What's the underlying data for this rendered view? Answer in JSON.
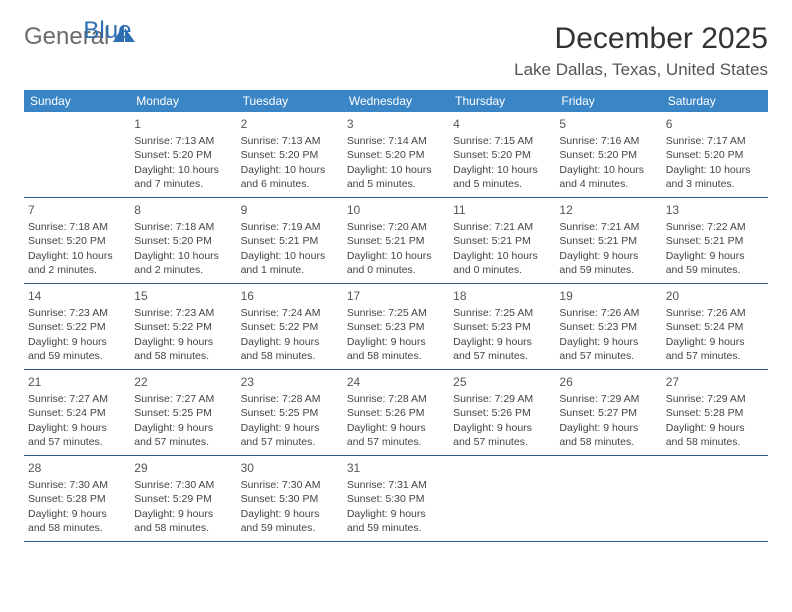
{
  "brand": {
    "part1": "General",
    "part2": "Blue"
  },
  "title": "December 2025",
  "location": "Lake Dallas, Texas, United States",
  "colors": {
    "header_bg": "#3a85c6",
    "header_text": "#ffffff",
    "border": "#2d5a8a",
    "logo_gray": "#6b6b6b",
    "logo_blue": "#2d6fb3",
    "text": "#444444"
  },
  "weekdays": [
    "Sunday",
    "Monday",
    "Tuesday",
    "Wednesday",
    "Thursday",
    "Friday",
    "Saturday"
  ],
  "weeks": [
    [
      null,
      {
        "n": "1",
        "sunrise": "7:13 AM",
        "sunset": "5:20 PM",
        "daylight": "10 hours and 7 minutes."
      },
      {
        "n": "2",
        "sunrise": "7:13 AM",
        "sunset": "5:20 PM",
        "daylight": "10 hours and 6 minutes."
      },
      {
        "n": "3",
        "sunrise": "7:14 AM",
        "sunset": "5:20 PM",
        "daylight": "10 hours and 5 minutes."
      },
      {
        "n": "4",
        "sunrise": "7:15 AM",
        "sunset": "5:20 PM",
        "daylight": "10 hours and 5 minutes."
      },
      {
        "n": "5",
        "sunrise": "7:16 AM",
        "sunset": "5:20 PM",
        "daylight": "10 hours and 4 minutes."
      },
      {
        "n": "6",
        "sunrise": "7:17 AM",
        "sunset": "5:20 PM",
        "daylight": "10 hours and 3 minutes."
      }
    ],
    [
      {
        "n": "7",
        "sunrise": "7:18 AM",
        "sunset": "5:20 PM",
        "daylight": "10 hours and 2 minutes."
      },
      {
        "n": "8",
        "sunrise": "7:18 AM",
        "sunset": "5:20 PM",
        "daylight": "10 hours and 2 minutes."
      },
      {
        "n": "9",
        "sunrise": "7:19 AM",
        "sunset": "5:21 PM",
        "daylight": "10 hours and 1 minute."
      },
      {
        "n": "10",
        "sunrise": "7:20 AM",
        "sunset": "5:21 PM",
        "daylight": "10 hours and 0 minutes."
      },
      {
        "n": "11",
        "sunrise": "7:21 AM",
        "sunset": "5:21 PM",
        "daylight": "10 hours and 0 minutes."
      },
      {
        "n": "12",
        "sunrise": "7:21 AM",
        "sunset": "5:21 PM",
        "daylight": "9 hours and 59 minutes."
      },
      {
        "n": "13",
        "sunrise": "7:22 AM",
        "sunset": "5:21 PM",
        "daylight": "9 hours and 59 minutes."
      }
    ],
    [
      {
        "n": "14",
        "sunrise": "7:23 AM",
        "sunset": "5:22 PM",
        "daylight": "9 hours and 59 minutes."
      },
      {
        "n": "15",
        "sunrise": "7:23 AM",
        "sunset": "5:22 PM",
        "daylight": "9 hours and 58 minutes."
      },
      {
        "n": "16",
        "sunrise": "7:24 AM",
        "sunset": "5:22 PM",
        "daylight": "9 hours and 58 minutes."
      },
      {
        "n": "17",
        "sunrise": "7:25 AM",
        "sunset": "5:23 PM",
        "daylight": "9 hours and 58 minutes."
      },
      {
        "n": "18",
        "sunrise": "7:25 AM",
        "sunset": "5:23 PM",
        "daylight": "9 hours and 57 minutes."
      },
      {
        "n": "19",
        "sunrise": "7:26 AM",
        "sunset": "5:23 PM",
        "daylight": "9 hours and 57 minutes."
      },
      {
        "n": "20",
        "sunrise": "7:26 AM",
        "sunset": "5:24 PM",
        "daylight": "9 hours and 57 minutes."
      }
    ],
    [
      {
        "n": "21",
        "sunrise": "7:27 AM",
        "sunset": "5:24 PM",
        "daylight": "9 hours and 57 minutes."
      },
      {
        "n": "22",
        "sunrise": "7:27 AM",
        "sunset": "5:25 PM",
        "daylight": "9 hours and 57 minutes."
      },
      {
        "n": "23",
        "sunrise": "7:28 AM",
        "sunset": "5:25 PM",
        "daylight": "9 hours and 57 minutes."
      },
      {
        "n": "24",
        "sunrise": "7:28 AM",
        "sunset": "5:26 PM",
        "daylight": "9 hours and 57 minutes."
      },
      {
        "n": "25",
        "sunrise": "7:29 AM",
        "sunset": "5:26 PM",
        "daylight": "9 hours and 57 minutes."
      },
      {
        "n": "26",
        "sunrise": "7:29 AM",
        "sunset": "5:27 PM",
        "daylight": "9 hours and 58 minutes."
      },
      {
        "n": "27",
        "sunrise": "7:29 AM",
        "sunset": "5:28 PM",
        "daylight": "9 hours and 58 minutes."
      }
    ],
    [
      {
        "n": "28",
        "sunrise": "7:30 AM",
        "sunset": "5:28 PM",
        "daylight": "9 hours and 58 minutes."
      },
      {
        "n": "29",
        "sunrise": "7:30 AM",
        "sunset": "5:29 PM",
        "daylight": "9 hours and 58 minutes."
      },
      {
        "n": "30",
        "sunrise": "7:30 AM",
        "sunset": "5:30 PM",
        "daylight": "9 hours and 59 minutes."
      },
      {
        "n": "31",
        "sunrise": "7:31 AM",
        "sunset": "5:30 PM",
        "daylight": "9 hours and 59 minutes."
      },
      null,
      null,
      null
    ]
  ]
}
